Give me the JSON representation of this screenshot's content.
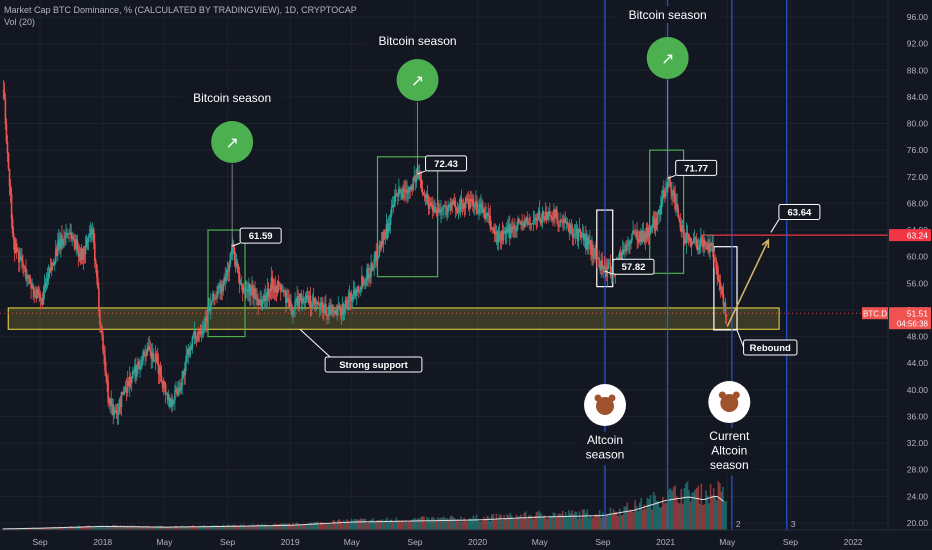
{
  "header": {
    "title": "Market Cap BTC Dominance, % (CALCULATED BY TRADINGVIEW), 1D, CRYPTOCAP",
    "volume_label": "Vol (20)"
  },
  "chart_data": {
    "type": "candlestick",
    "title": "Market Cap BTC Dominance, % (CALCULATED BY TRADINGVIEW), 1D, CRYPTOCAP",
    "ylim": [
      19,
      100
    ],
    "y_ticks": [
      20,
      24,
      28,
      32,
      36,
      40,
      44,
      48,
      52,
      56,
      60,
      64,
      68,
      72,
      76,
      80,
      84,
      88,
      92,
      96
    ],
    "y_tick_labels": [
      "20.00",
      "24.00",
      "28.00",
      "32.00",
      "36.00",
      "40.00",
      "44.00",
      "48.00",
      "52.00",
      "56.00",
      "60.00",
      "64.00",
      "68.00",
      "72.00",
      "76.00",
      "80.00",
      "84.00",
      "88.00",
      "92.00",
      "96.00"
    ],
    "x_range": [
      "2017-06-15",
      "2022-03-10"
    ],
    "x_ticks": [
      {
        "date": "2017-09-01",
        "label": "Sep"
      },
      {
        "date": "2018-01-01",
        "label": "2018"
      },
      {
        "date": "2018-05-01",
        "label": "May"
      },
      {
        "date": "2018-09-01",
        "label": "Sep"
      },
      {
        "date": "2019-01-01",
        "label": "2019"
      },
      {
        "date": "2019-05-01",
        "label": "May"
      },
      {
        "date": "2019-09-01",
        "label": "Sep"
      },
      {
        "date": "2020-01-01",
        "label": "2020"
      },
      {
        "date": "2020-05-01",
        "label": "May"
      },
      {
        "date": "2020-09-01",
        "label": "Sep"
      },
      {
        "date": "2021-01-01",
        "label": "2021"
      },
      {
        "date": "2021-05-01",
        "label": "May"
      },
      {
        "date": "2021-09-01",
        "label": "Sep"
      },
      {
        "date": "2022-01-01",
        "label": "2022"
      }
    ],
    "series": [
      {
        "name": "BTC.D",
        "points": [
          [
            "2017-06-20",
            85
          ],
          [
            "2017-07-10",
            62
          ],
          [
            "2017-08-05",
            57
          ],
          [
            "2017-09-01",
            53
          ],
          [
            "2017-10-01",
            61
          ],
          [
            "2017-10-25",
            64
          ],
          [
            "2017-11-20",
            60
          ],
          [
            "2017-12-10",
            64
          ],
          [
            "2017-12-25",
            51
          ],
          [
            "2018-01-10",
            39
          ],
          [
            "2018-01-25",
            36
          ],
          [
            "2018-02-10",
            40
          ],
          [
            "2018-03-05",
            43
          ],
          [
            "2018-03-25",
            46
          ],
          [
            "2018-04-15",
            44
          ],
          [
            "2018-05-10",
            38
          ],
          [
            "2018-06-01",
            41
          ],
          [
            "2018-06-20",
            47
          ],
          [
            "2018-07-15",
            50
          ],
          [
            "2018-08-05",
            54
          ],
          [
            "2018-08-25",
            56
          ],
          [
            "2018-09-10",
            61.59
          ],
          [
            "2018-09-25",
            55
          ],
          [
            "2018-10-15",
            55
          ],
          [
            "2018-11-05",
            53
          ],
          [
            "2018-11-25",
            56
          ],
          [
            "2018-12-15",
            55
          ],
          [
            "2019-01-01",
            52
          ],
          [
            "2019-01-20",
            54
          ],
          [
            "2019-02-10",
            53
          ],
          [
            "2019-03-05",
            52
          ],
          [
            "2019-04-01",
            51.5
          ],
          [
            "2019-04-20",
            53
          ],
          [
            "2019-05-15",
            56
          ],
          [
            "2019-06-05",
            58
          ],
          [
            "2019-06-25",
            62
          ],
          [
            "2019-07-10",
            65
          ],
          [
            "2019-07-25",
            69
          ],
          [
            "2019-08-10",
            70
          ],
          [
            "2019-08-20",
            70.5
          ],
          [
            "2019-09-06",
            72.43
          ],
          [
            "2019-09-25",
            68
          ],
          [
            "2019-10-15",
            67
          ],
          [
            "2019-11-10",
            67.5
          ],
          [
            "2019-12-10",
            68
          ],
          [
            "2020-01-10",
            67
          ],
          [
            "2020-02-05",
            63
          ],
          [
            "2020-02-20",
            63
          ],
          [
            "2020-03-15",
            65
          ],
          [
            "2020-04-10",
            65
          ],
          [
            "2020-05-01",
            66
          ],
          [
            "2020-05-25",
            66.5
          ],
          [
            "2020-06-10",
            65
          ],
          [
            "2020-07-01",
            64
          ],
          [
            "2020-07-20",
            63
          ],
          [
            "2020-08-10",
            61
          ],
          [
            "2020-08-25",
            59
          ],
          [
            "2020-09-05",
            57.82
          ],
          [
            "2020-09-25",
            58.5
          ],
          [
            "2020-10-10",
            61
          ],
          [
            "2020-11-01",
            63.5
          ],
          [
            "2020-11-20",
            63
          ],
          [
            "2020-12-10",
            65
          ],
          [
            "2020-12-25",
            69
          ],
          [
            "2021-01-05",
            71.77
          ],
          [
            "2021-01-15",
            69
          ],
          [
            "2021-01-25",
            65
          ],
          [
            "2021-02-05",
            63
          ],
          [
            "2021-02-20",
            62.5
          ],
          [
            "2021-03-05",
            62
          ],
          [
            "2021-03-20",
            62
          ],
          [
            "2021-04-01",
            61
          ],
          [
            "2021-04-15",
            56
          ],
          [
            "2021-04-22",
            53
          ],
          [
            "2021-04-28",
            51.51
          ]
        ]
      },
      {
        "name": "Vol (20)",
        "points": [
          [
            "2017-06-20",
            0.3
          ],
          [
            "2017-09-01",
            0.5
          ],
          [
            "2018-01-01",
            1.0
          ],
          [
            "2018-05-01",
            0.8
          ],
          [
            "2018-09-01",
            1.0
          ],
          [
            "2019-01-01",
            1.3
          ],
          [
            "2019-05-01",
            2.2
          ],
          [
            "2019-09-01",
            2.5
          ],
          [
            "2020-01-01",
            2.8
          ],
          [
            "2020-05-01",
            3.6
          ],
          [
            "2020-09-01",
            4.0
          ],
          [
            "2020-11-01",
            5.5
          ],
          [
            "2021-01-01",
            8.2
          ],
          [
            "2021-02-15",
            9.2
          ],
          [
            "2021-03-15",
            8.4
          ],
          [
            "2021-04-10",
            9.5
          ],
          [
            "2021-04-28",
            7.5
          ]
        ]
      }
    ],
    "current_price": {
      "label": "BTC.D",
      "value": "51.51",
      "countdown": "04:56:38"
    },
    "resistance": {
      "value": 63.24,
      "label": "63.24"
    },
    "support_zone": {
      "from": 49.1,
      "to": 52.3,
      "date_from": "2017-07-01",
      "date_to": "2021-08-10",
      "label": "Strong support"
    },
    "boxes": [
      {
        "date_from": "2018-07-25",
        "date_to": "2018-10-05",
        "low": 48,
        "high": 64,
        "color": "#4caf50"
      },
      {
        "date_from": "2019-06-20",
        "date_to": "2019-10-15",
        "low": 57,
        "high": 75,
        "color": "#4caf50"
      },
      {
        "date_from": "2020-12-01",
        "date_to": "2021-02-05",
        "low": 57.5,
        "high": 76,
        "color": "#4caf50"
      },
      {
        "date_from": "2020-08-20",
        "date_to": "2020-09-20",
        "low": 55.5,
        "high": 67,
        "color": "#ffffff"
      },
      {
        "date_from": "2021-04-05",
        "date_to": "2021-05-20",
        "low": 49,
        "high": 61.5,
        "color": "#ffffff"
      }
    ],
    "peak_labels": [
      {
        "date": "2018-09-10",
        "value": 61.59,
        "text": "61.59"
      },
      {
        "date": "2019-09-06",
        "value": 72.43,
        "text": "72.43"
      },
      {
        "date": "2020-09-05",
        "value": 57.82,
        "text": "57.82"
      },
      {
        "date": "2021-01-05",
        "value": 71.77,
        "text": "71.77"
      },
      {
        "date": "2021-07-25",
        "value": 63.64,
        "text": "63.64"
      }
    ],
    "annotations": [
      {
        "text": "Bitcoin season",
        "date": "2018-09-10"
      },
      {
        "text": "Bitcoin season",
        "date": "2019-09-06"
      },
      {
        "text": "Bitcoin season",
        "date": "2021-01-05"
      },
      {
        "text": "Altcoin season",
        "date": "2020-09-05"
      },
      {
        "text": "Current Altcoin season",
        "date": "2021-05-05"
      },
      {
        "text": "Rebound",
        "date": "2021-06-20"
      }
    ],
    "vertical_markers": [
      {
        "date": "2020-09-05",
        "label": ""
      },
      {
        "date": "2021-01-05",
        "label": ""
      },
      {
        "date": "2021-05-10",
        "label": "2"
      },
      {
        "date": "2021-08-25",
        "label": "3"
      }
    ],
    "projection": {
      "from_date": "2021-05-01",
      "from_value": 49.5,
      "to_date": "2021-07-20",
      "to_value": 62.5
    },
    "colors": {
      "up": "#26a69a",
      "down": "#ef5350",
      "support": "#f0e040",
      "resistance": "#f23645",
      "season_circle": "#4caf50",
      "marker_line": "#2962ff"
    }
  }
}
